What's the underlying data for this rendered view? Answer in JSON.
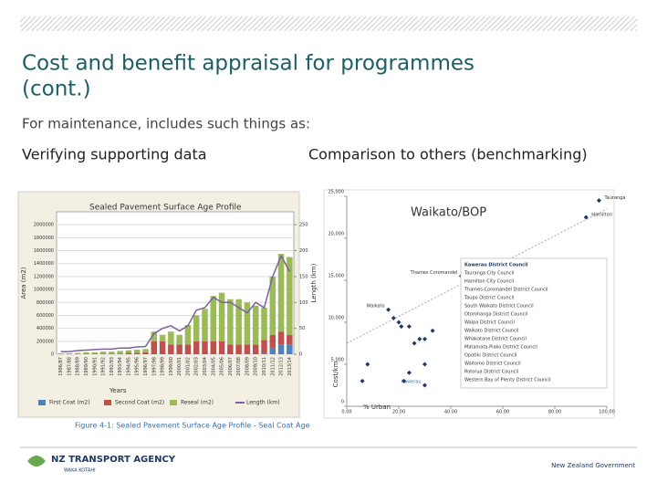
{
  "slide": {
    "title_line1": "Cost and benefit appraisal for programmes",
    "title_line2": "(cont.)",
    "subtitle": "For maintenance, includes such things as:",
    "left_heading": "Verifying supporting data",
    "right_heading": "Comparison to others (benchmarking)",
    "caption": "Figure 4-1: Sealed Pavement Surface Age Profile - Seal Coat Age",
    "logo_main": "NZ TRANSPORT AGENCY",
    "logo_sub": "WAKA KOTAHI",
    "footer": "New Zealand Government"
  },
  "chart_data": [
    {
      "type": "bar",
      "title": "Sealed Pavement Surface Age Profile",
      "x_label": "Years",
      "y_label": "Area (m2)",
      "y2_label": "Length (km)",
      "categories": [
        "1986/87",
        "1987/88",
        "1988/89",
        "1989/90",
        "1990/91",
        "1991/92",
        "1992/93",
        "1993/94",
        "1994/95",
        "1995/96",
        "1996/97",
        "1997/98",
        "1998/99",
        "1999/00",
        "2000/01",
        "2001/02",
        "2002/03",
        "2003/04",
        "2004/05",
        "2005/06",
        "2006/07",
        "2007/08",
        "2008/09",
        "2009/10",
        "2010/11",
        "2011/12",
        "2012/13",
        "2013/14"
      ],
      "series": [
        {
          "name": "First Coat (m2)",
          "color": "#4f81bd",
          "values": [
            0,
            0,
            0,
            0,
            0,
            0,
            0,
            0,
            0,
            0,
            0,
            0,
            0,
            0,
            0,
            0,
            0,
            0,
            0,
            0,
            0,
            0,
            0,
            0,
            20000,
            100000,
            150000,
            150000
          ]
        },
        {
          "name": "Second Coat (m2)",
          "color": "#c0504d",
          "values": [
            5000,
            5000,
            5000,
            10000,
            10000,
            10000,
            10000,
            10000,
            20000,
            20000,
            30000,
            200000,
            200000,
            150000,
            150000,
            150000,
            200000,
            200000,
            200000,
            200000,
            150000,
            150000,
            150000,
            150000,
            200000,
            200000,
            200000,
            150000
          ]
        },
        {
          "name": "Reseal (m2)",
          "color": "#9bbb59",
          "values": [
            10000,
            10000,
            15000,
            20000,
            20000,
            30000,
            30000,
            40000,
            40000,
            50000,
            50000,
            150000,
            100000,
            200000,
            150000,
            300000,
            400000,
            500000,
            700000,
            750000,
            700000,
            700000,
            650000,
            600000,
            500000,
            900000,
            1200000,
            1200000
          ]
        },
        {
          "name": "Length (km)",
          "color": "#7f5f9f",
          "axis": "y2",
          "values": [
            5,
            5,
            7,
            8,
            9,
            10,
            10,
            12,
            12,
            14,
            15,
            40,
            50,
            55,
            45,
            55,
            85,
            90,
            110,
            100,
            100,
            90,
            80,
            100,
            90,
            150,
            190,
            160
          ]
        }
      ],
      "ylim": [
        0,
        2200000
      ],
      "yticks": [
        0,
        200000,
        400000,
        600000,
        800000,
        1000000,
        1200000,
        1400000,
        1600000,
        1800000,
        2000000
      ],
      "y2lim": [
        0,
        275
      ],
      "y2ticks": [
        0,
        50,
        100,
        150,
        200,
        250
      ],
      "grid": true
    },
    {
      "type": "scatter",
      "title": "Waikato/BOP",
      "x_label": "% Urban",
      "y_label": "Cost/km",
      "series": [
        {
          "name": "Councils",
          "color": "#1f3864",
          "x": [
            97,
            92,
            44,
            16,
            30,
            8,
            18,
            20,
            21,
            24,
            26,
            28,
            30,
            33,
            6,
            22,
            24,
            30
          ],
          "values": [
            24500,
            22500,
            15500,
            11500,
            2500,
            5000,
            10500,
            10000,
            9500,
            9500,
            7500,
            8000,
            8000,
            9000,
            3000,
            3000,
            4000,
            5000
          ],
          "labels": [
            "Tauranga",
            "Hamilton",
            "Thames Coromandel",
            "Waikato",
            "Kawerau",
            null,
            null,
            null,
            null,
            null,
            null,
            null,
            null,
            null,
            null,
            null,
            null,
            null
          ]
        }
      ],
      "xlim": [
        0,
        100
      ],
      "xticks": [
        {
          "value": 0,
          "label": "0.00"
        },
        {
          "value": 20,
          "label": "20.00"
        },
        {
          "value": 40,
          "label": "40.00"
        },
        {
          "value": 60,
          "label": "60.00"
        },
        {
          "value": 80,
          "label": "80.00"
        },
        {
          "value": 100,
          "label": "100.00"
        }
      ],
      "ylim": [
        0,
        25000
      ],
      "yticks": [
        0,
        {
          "value": 5000,
          "label": "5,000"
        },
        {
          "value": 10000,
          "label": "10,000"
        },
        {
          "value": 15000,
          "label": "15,000"
        },
        {
          "value": 20000,
          "label": "20,000"
        },
        {
          "value": 25000,
          "label": "25,000"
        }
      ],
      "legend_items": [
        "Kawerau District Council",
        "Tauranga City Council",
        "Hamilton City Council",
        "Thames-Coromandel District Council",
        "Taupo District Council",
        "South Waikato District Council",
        "Otorohanga District Council",
        "Waipa District Council",
        "Waikato District Council",
        "Whakatane District Council",
        "Matamata-Piako District Council",
        "Opotiki District Council",
        "Waitomo District Council",
        "Rotorua District Council",
        "Western Bay of Plenty District Council"
      ]
    }
  ]
}
